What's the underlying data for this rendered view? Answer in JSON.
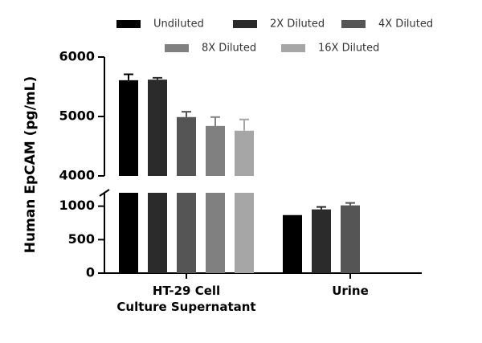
{
  "chart_data": {
    "type": "bar",
    "y_label": "Human EpCAM (pg/mL)",
    "categories": [
      "HT-29 Cell\nCulture Supernatant",
      "Urine"
    ],
    "series": [
      {
        "name": "Undiluted",
        "color": "#000000",
        "values": [
          5610,
          867
        ],
        "errors": [
          100,
          null
        ]
      },
      {
        "name": "2X Diluted",
        "color": "#2b2b2b",
        "values": [
          5620,
          952
        ],
        "errors": [
          30,
          36
        ]
      },
      {
        "name": "4X Diluted",
        "color": "#555555",
        "values": [
          4990,
          1012
        ],
        "errors": [
          90,
          36
        ]
      },
      {
        "name": "8X Diluted",
        "color": "#808080",
        "values": [
          4840,
          null
        ],
        "errors": [
          150,
          null
        ]
      },
      {
        "name": "16X Diluted",
        "color": "#a6a6a6",
        "values": [
          4760,
          null
        ],
        "errors": [
          190,
          null
        ]
      }
    ],
    "y_segments": [
      {
        "ylim": [
          0,
          1200
        ],
        "yticks": [
          0,
          500,
          1000
        ]
      },
      {
        "ylim": [
          4000,
          6000
        ],
        "yticks": [
          4000,
          5000,
          6000
        ]
      }
    ]
  }
}
